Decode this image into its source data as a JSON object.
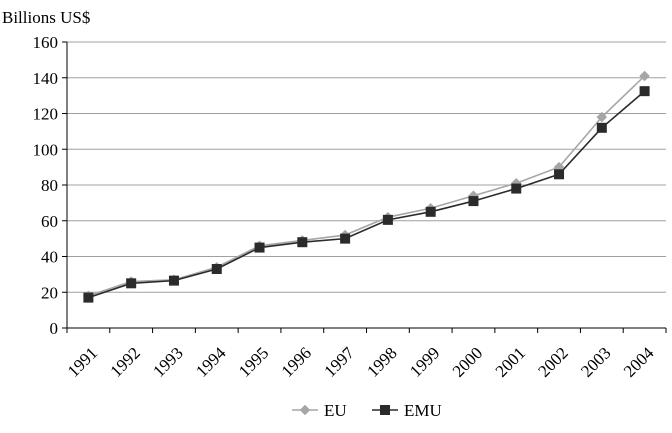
{
  "chart_data": {
    "type": "line",
    "ylabel": "Billions US$",
    "xlabel": "",
    "categories": [
      "1991",
      "1992",
      "1993",
      "1994",
      "1995",
      "1996",
      "1997",
      "1998",
      "1999",
      "2000",
      "2001",
      "2002",
      "2003",
      "2004"
    ],
    "ylim": [
      0,
      160
    ],
    "yticks": [
      0,
      20,
      40,
      60,
      80,
      100,
      120,
      140,
      160
    ],
    "grid": true,
    "legend_position": "bottom",
    "series": [
      {
        "name": "EU",
        "marker": "diamond",
        "color": "#a6a6a6",
        "values": [
          18,
          26,
          27,
          34,
          46,
          49,
          52,
          62,
          67,
          74,
          81,
          90,
          118,
          141
        ]
      },
      {
        "name": "EMU",
        "marker": "square",
        "color": "#2b2b2b",
        "values": [
          17,
          25,
          26.5,
          33,
          45,
          48,
          50,
          60.5,
          65,
          71,
          78,
          86,
          112,
          132.5
        ]
      }
    ]
  }
}
